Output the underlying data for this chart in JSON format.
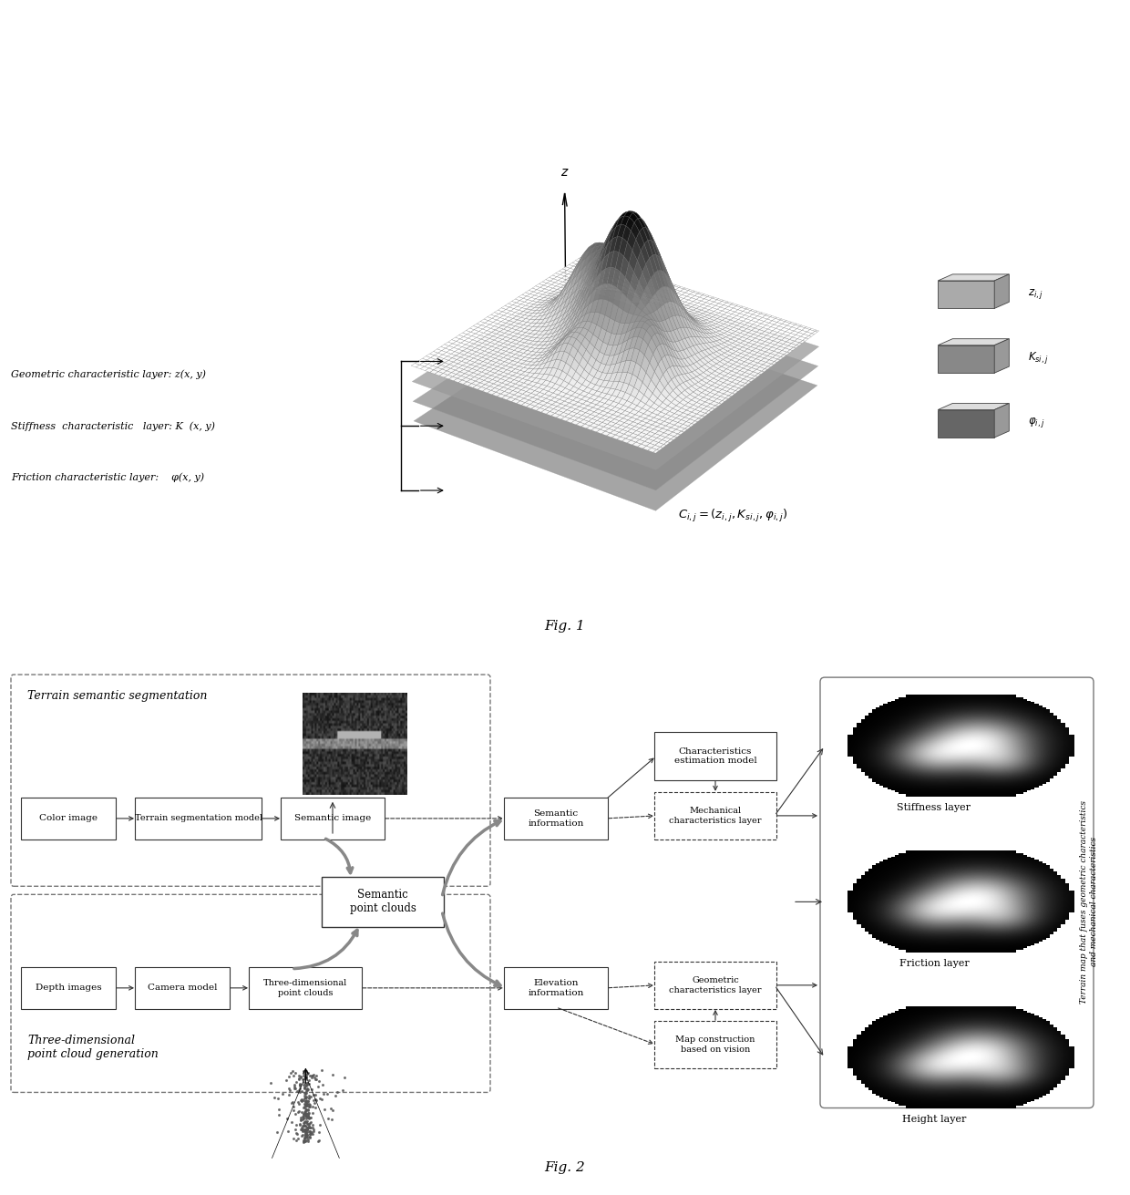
{
  "fig1_caption": "Fig. 1",
  "fig2_caption": "Fig. 2",
  "bg_color": "#ffffff",
  "fig1_left_labels": [
    "Geometric characteristic layer: z(x, y)",
    "Stiffness  characteristic   layer: K  (x, y)",
    "Friction characteristic layer:    φ(x, y)"
  ],
  "fig2_group_terrain_label": "Terrain semantic segmentation",
  "fig2_group_3d_label": "Three-dimensional\npoint cloud generation",
  "fig2_boxes": {
    "color_image": "Color image",
    "terrain_seg": "Terrain segmentation model",
    "semantic_image": "Semantic image",
    "semantic_info": "Semantic\ninformation",
    "depth_images": "Depth images",
    "camera_model": "Camera model",
    "three_d_clouds": "Three-dimensional\npoint clouds",
    "elevation_info": "Elevation\ninformation",
    "semantic_clouds": "Semantic\npoint clouds",
    "char_estimation": "Characteristics\nestimation model",
    "mechanical_layer": "Mechanical\ncharacteristics layer",
    "geo_layer": "Geometric\ncharacteristics layer",
    "map_construction": "Map construction\nbased on vision"
  },
  "fig2_layer_labels": [
    "Stiffness layer",
    "Friction layer",
    "Height layer"
  ],
  "fig2_right_text": "Terrain map that fuses geometric characteristics\nand mechanical characteristics"
}
